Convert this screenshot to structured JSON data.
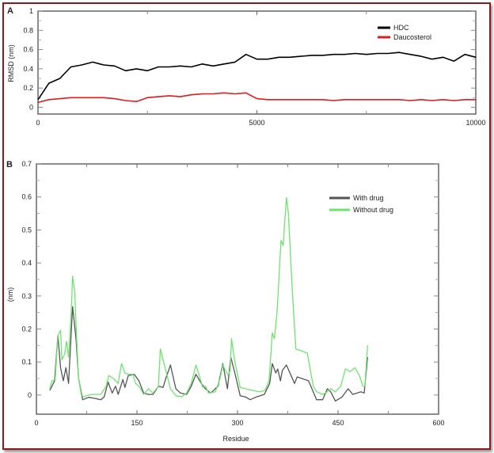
{
  "chart_data": [
    {
      "panel_label": "A",
      "type": "line",
      "ylabel": "RMSD (nm)",
      "xlabel": "",
      "xlim": [
        0,
        10000
      ],
      "ylim": [
        -0.07,
        1.0
      ],
      "xticks": [
        0,
        5000,
        10000
      ],
      "yticks": [
        0,
        0.2,
        0.4,
        0.6,
        0.8,
        1
      ],
      "legend": "top-right",
      "x": [
        0,
        250,
        500,
        750,
        1000,
        1250,
        1500,
        1750,
        2000,
        2250,
        2500,
        2750,
        3000,
        3250,
        3500,
        3750,
        4000,
        4250,
        4500,
        4750,
        5000,
        5250,
        5500,
        5750,
        6000,
        6250,
        6500,
        6750,
        7000,
        7250,
        7500,
        7750,
        8000,
        8250,
        8500,
        8750,
        9000,
        9250,
        9500,
        9750,
        10000
      ],
      "series": [
        {
          "name": "HDC",
          "color": "#000000",
          "values": [
            0.08,
            0.25,
            0.3,
            0.42,
            0.44,
            0.47,
            0.44,
            0.43,
            0.38,
            0.4,
            0.38,
            0.42,
            0.42,
            0.43,
            0.42,
            0.45,
            0.43,
            0.45,
            0.47,
            0.55,
            0.5,
            0.5,
            0.52,
            0.52,
            0.53,
            0.54,
            0.54,
            0.55,
            0.55,
            0.56,
            0.55,
            0.56,
            0.56,
            0.57,
            0.55,
            0.53,
            0.5,
            0.52,
            0.48,
            0.55,
            0.52
          ]
        },
        {
          "name": "Daucosterol",
          "color": "#dd1c1c",
          "values": [
            0.05,
            0.08,
            0.09,
            0.1,
            0.1,
            0.1,
            0.1,
            0.09,
            0.07,
            0.06,
            0.1,
            0.11,
            0.12,
            0.11,
            0.13,
            0.14,
            0.14,
            0.15,
            0.14,
            0.15,
            0.09,
            0.08,
            0.08,
            0.08,
            0.08,
            0.08,
            0.08,
            0.07,
            0.08,
            0.08,
            0.08,
            0.08,
            0.08,
            0.08,
            0.07,
            0.08,
            0.07,
            0.08,
            0.07,
            0.08,
            0.08
          ]
        }
      ]
    },
    {
      "panel_label": "B",
      "type": "line",
      "ylabel": "(nm)",
      "xlabel": "Residue",
      "xlim": [
        0,
        600
      ],
      "ylim": [
        -0.058,
        0.7
      ],
      "xticks": [
        0,
        150,
        300,
        450,
        600
      ],
      "yticks": [
        0,
        0.1,
        0.2,
        0.3,
        0.4,
        0.5,
        0.6,
        0.7
      ],
      "legend": "top-right",
      "series": [
        {
          "name": "With drug",
          "color": "#555555",
          "x": [
            20,
            27,
            32,
            36,
            40,
            44,
            48,
            54,
            59,
            63,
            69,
            78,
            87,
            96,
            101,
            107,
            113,
            118,
            122,
            129,
            132,
            137,
            146,
            153,
            160,
            167,
            174,
            182,
            189,
            193,
            200,
            208,
            215,
            224,
            231,
            238,
            246,
            252,
            260,
            271,
            278,
            285,
            290,
            296,
            304,
            312,
            319,
            328,
            340,
            348,
            352,
            357,
            360,
            364,
            367,
            373,
            380,
            385,
            389,
            406,
            418,
            427,
            434,
            439,
            446,
            456,
            465,
            472,
            484,
            489,
            494
          ],
          "y": [
            0.014,
            0.043,
            0.18,
            0.083,
            0.043,
            0.083,
            0.035,
            0.268,
            0.171,
            0.05,
            -0.014,
            -0.007,
            -0.01,
            -0.014,
            -0.006,
            0.039,
            0.006,
            0.027,
            0.002,
            0.047,
            0.023,
            0.059,
            0.063,
            0.043,
            0.006,
            0.002,
            0.002,
            0.027,
            0.023,
            0.05,
            0.091,
            0.019,
            0.006,
            0.002,
            0.027,
            0.063,
            0.035,
            0.019,
            0.006,
            0.027,
            0.095,
            0.019,
            0.115,
            0.067,
            -0.002,
            -0.006,
            -0.014,
            -0.006,
            0.002,
            0.035,
            0.095,
            0.067,
            0.079,
            0.043,
            0.075,
            0.091,
            0.059,
            0.035,
            0.055,
            0.043,
            -0.014,
            -0.014,
            0.019,
            0.01,
            -0.018,
            -0.006,
            0.019,
            0.002,
            0.01,
            0.006,
            0.115
          ]
        },
        {
          "name": "Without drug",
          "color": "#6fe36f",
          "x": [
            20,
            23,
            28,
            32,
            36,
            38,
            42,
            45,
            48,
            52,
            54,
            57,
            60,
            63,
            67,
            70,
            80,
            87,
            96,
            104,
            108,
            115,
            122,
            127,
            132,
            137,
            144,
            148,
            153,
            160,
            167,
            174,
            182,
            185,
            189,
            193,
            200,
            208,
            217,
            224,
            231,
            238,
            243,
            248,
            252,
            257,
            267,
            274,
            278,
            286,
            289,
            291,
            295,
            297,
            304,
            312,
            323,
            333,
            341,
            347,
            352,
            355,
            359,
            365,
            368,
            373,
            376,
            382,
            387,
            394,
            404,
            413,
            418,
            427,
            434,
            439,
            446,
            454,
            461,
            468,
            475,
            482,
            487,
            490,
            494
          ],
          "y": [
            0.019,
            0.043,
            0.047,
            0.18,
            0.196,
            0.107,
            0.123,
            0.163,
            0.115,
            0.25,
            0.36,
            0.316,
            0.17,
            0.05,
            0,
            -0.005,
            0.001,
            0.002,
            0.002,
            0.027,
            0.059,
            0.05,
            0.035,
            0.095,
            0.067,
            0.063,
            0.063,
            0.035,
            0.027,
            0.002,
            0.019,
            0.006,
            0.027,
            0.14,
            0.107,
            0.075,
            0.019,
            -0.002,
            -0.005,
            0.006,
            0.035,
            0.091,
            0.059,
            0.023,
            0.027,
            0.006,
            0.01,
            0.05,
            0.091,
            0.059,
            0.075,
            0.171,
            0.115,
            0.091,
            0.023,
            0.019,
            0.014,
            0.01,
            0.014,
            0.043,
            0.188,
            0.171,
            0.252,
            0.469,
            0.453,
            0.598,
            0.55,
            0.308,
            0.139,
            0.135,
            0.127,
            0.027,
            0.01,
            0.002,
            0.01,
            0.019,
            0.01,
            0.027,
            0.079,
            0.071,
            0.083,
            0.059,
            0.027,
            0.027,
            0.151
          ]
        }
      ]
    }
  ]
}
